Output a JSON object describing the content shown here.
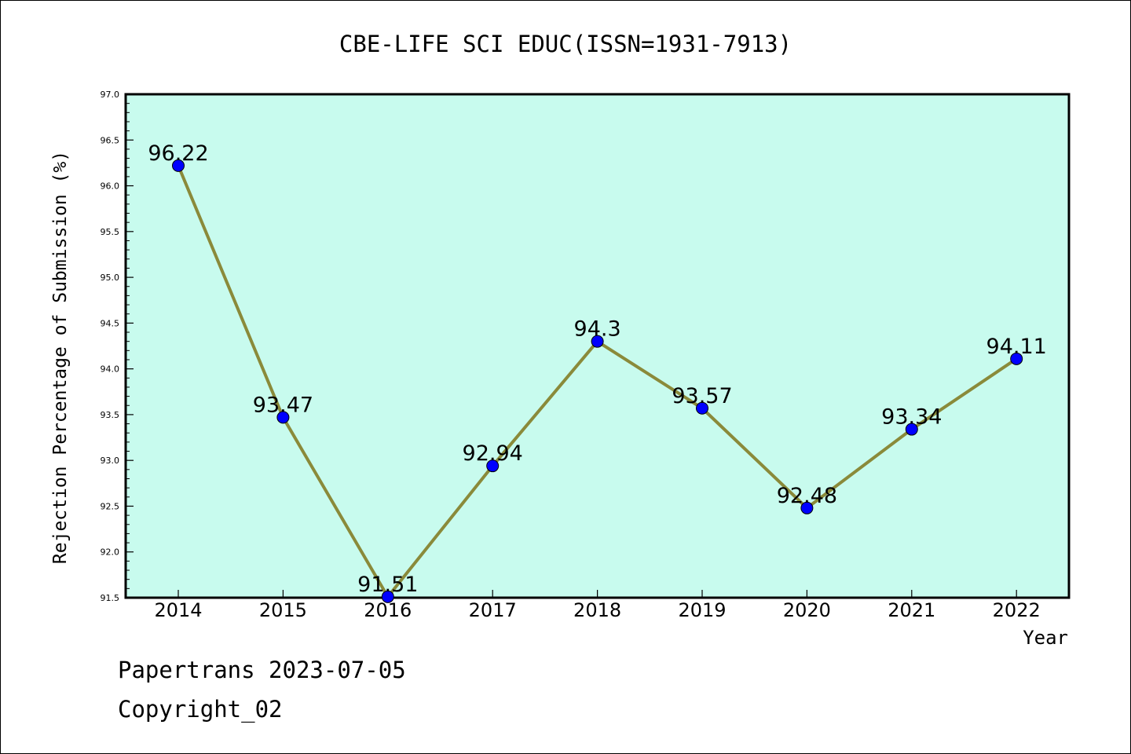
{
  "footer": {
    "line1": "Papertrans 2023-07-05",
    "line2": "Copyright_02"
  },
  "chart_data": {
    "type": "line",
    "title": "CBE-LIFE SCI EDUC(ISSN=1931-7913)",
    "xlabel": "Year",
    "ylabel": "Rejection Percentage of Submission (%)",
    "categories": [
      "2014",
      "2015",
      "2016",
      "2017",
      "2018",
      "2019",
      "2020",
      "2021",
      "2022"
    ],
    "values": [
      96.22,
      93.47,
      91.51,
      92.94,
      94.3,
      93.57,
      92.48,
      93.34,
      94.11
    ],
    "data_labels": [
      "96.22",
      "93.47",
      "91.51",
      "92.94",
      "94.3",
      "93.57",
      "92.48",
      "93.34",
      "94.11"
    ],
    "ylim": [
      91.5,
      97.0
    ],
    "yticks": [
      "91.5",
      "92.0",
      "92.5",
      "93.0",
      "93.5",
      "94.0",
      "94.5",
      "95.0",
      "95.5",
      "96.0",
      "96.5",
      "97.0"
    ],
    "grid": false,
    "legend": "none",
    "colors": {
      "plot_background": "#c8fbee",
      "line": "#8a8a3a",
      "marker": "#0000ff"
    }
  }
}
